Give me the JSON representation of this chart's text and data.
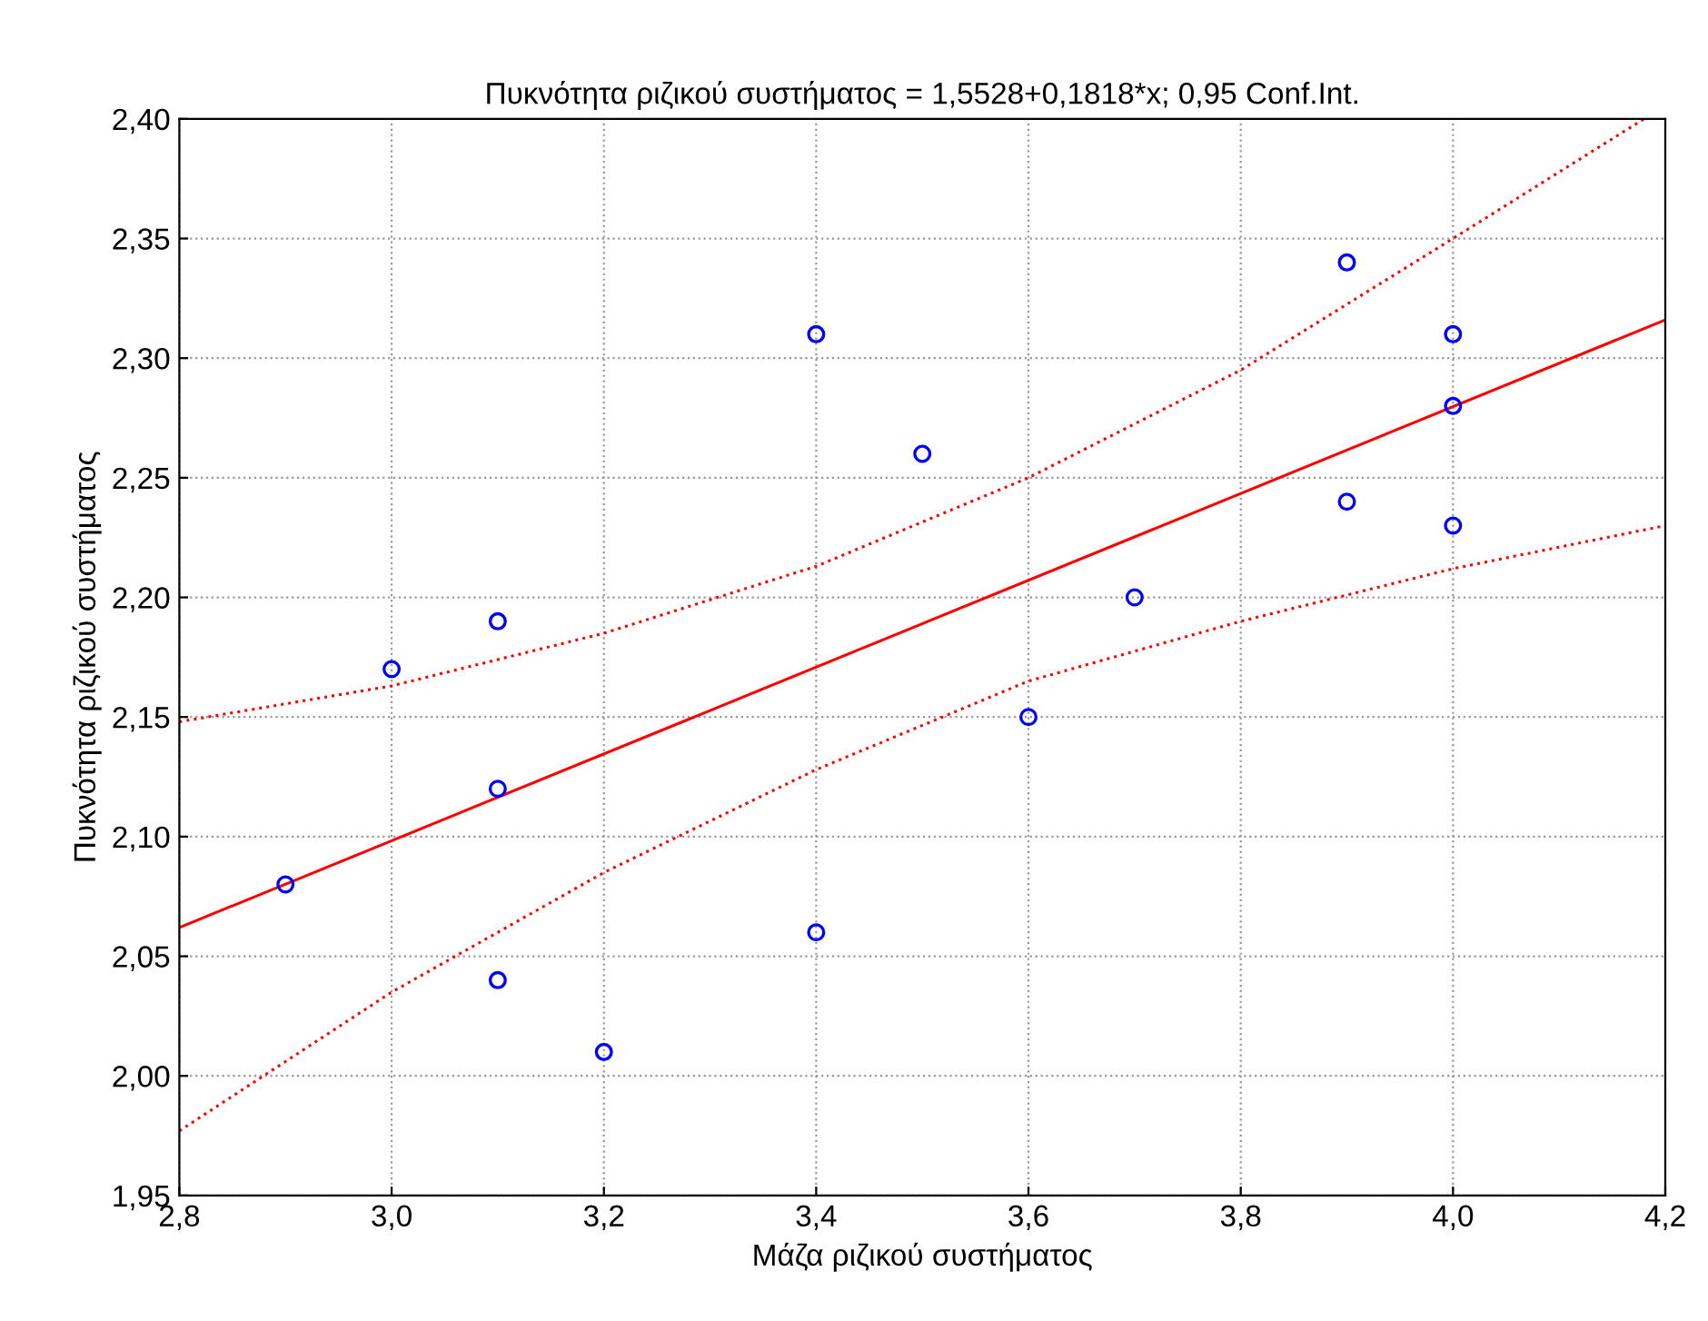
{
  "chart_data": {
    "type": "scatter",
    "title": "Πυκνότητα ριζικού συστήματος = 1,5528+0,1818*x; 0,95 Conf.Int.",
    "xlabel": "Μάζα ριζικού συστήματος",
    "ylabel": "Πυκνότητα ριζικού συστήματος",
    "xlim": [
      2.8,
      4.2
    ],
    "ylim": [
      1.95,
      2.4
    ],
    "xticks": [
      {
        "value": 2.8,
        "label": "2,8"
      },
      {
        "value": 3.0,
        "label": "3,0"
      },
      {
        "value": 3.2,
        "label": "3,2"
      },
      {
        "value": 3.4,
        "label": "3,4"
      },
      {
        "value": 3.6,
        "label": "3,6"
      },
      {
        "value": 3.8,
        "label": "3,8"
      },
      {
        "value": 4.0,
        "label": "4,0"
      },
      {
        "value": 4.2,
        "label": "4,2"
      }
    ],
    "yticks": [
      {
        "value": 1.95,
        "label": "1,95"
      },
      {
        "value": 2.0,
        "label": "2,00"
      },
      {
        "value": 2.05,
        "label": "2,05"
      },
      {
        "value": 2.1,
        "label": "2,10"
      },
      {
        "value": 2.15,
        "label": "2,15"
      },
      {
        "value": 2.2,
        "label": "2,20"
      },
      {
        "value": 2.25,
        "label": "2,25"
      },
      {
        "value": 2.3,
        "label": "2,30"
      },
      {
        "value": 2.35,
        "label": "2,35"
      },
      {
        "value": 2.4,
        "label": "2,40"
      }
    ],
    "grid": true,
    "series": [
      {
        "color": "#0000ff",
        "marker": "circle",
        "x": [
          2.9,
          3.0,
          3.1,
          3.1,
          3.1,
          3.2,
          3.4,
          3.4,
          3.5,
          3.6,
          3.7,
          3.9,
          3.9,
          4.0,
          4.0,
          4.0
        ],
        "values": [
          2.08,
          2.17,
          2.19,
          2.12,
          2.04,
          2.01,
          2.31,
          2.06,
          2.26,
          2.15,
          2.2,
          2.34,
          2.24,
          2.31,
          2.28,
          2.23
        ]
      },
      {
        "type": "line",
        "color": "#ff0000",
        "line_style": "solid",
        "x": [
          2.8,
          4.2
        ],
        "values": [
          2.062,
          2.316
        ]
      },
      {
        "type": "line",
        "color": "#ff0000",
        "line_style": "dotted",
        "x": [
          2.8,
          3.0,
          3.2,
          3.4,
          3.6,
          3.8,
          4.0,
          4.18
        ],
        "values": [
          2.148,
          2.163,
          2.185,
          2.213,
          2.25,
          2.295,
          2.35,
          2.4
        ]
      },
      {
        "type": "line",
        "color": "#ff0000",
        "line_style": "dotted",
        "x": [
          2.8,
          3.0,
          3.2,
          3.4,
          3.6,
          3.8,
          4.0,
          4.2
        ],
        "values": [
          1.977,
          2.035,
          2.085,
          2.128,
          2.165,
          2.19,
          2.212,
          2.23
        ]
      }
    ]
  }
}
